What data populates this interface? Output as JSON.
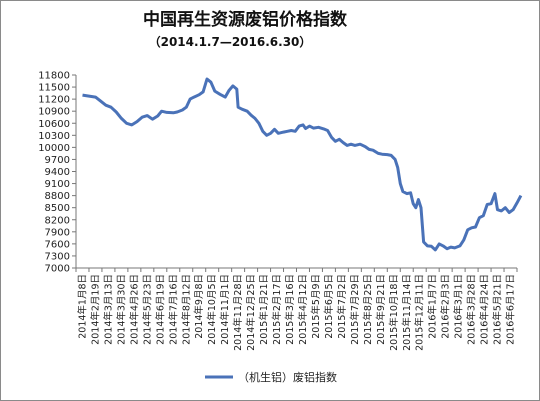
{
  "chart_data": {
    "type": "line",
    "title": "中国再生资源废铝价格指数",
    "subtitle": "（2014.1.7—2016.6.30）",
    "xlabel": "",
    "ylabel": "",
    "ylim": [
      7000,
      11800
    ],
    "yticks": [
      11800,
      11500,
      11200,
      10900,
      10600,
      10300,
      10000,
      9700,
      9400,
      9100,
      8800,
      8500,
      8200,
      7900,
      7600,
      7300,
      7000
    ],
    "x_tick_labels": [
      "2014年1月8日",
      "2014年2月19日",
      "2014年3月13日",
      "2014年3月30日",
      "2014年4月26日",
      "2014年5月23日",
      "2014年6月19日",
      "2014年7月16日",
      "2014年8月12日",
      "2014年9月8日",
      "2014年10月5日",
      "2014年11月1日",
      "2014年11月28日",
      "2014年12月25日",
      "2015年1月21日",
      "2015年2月17日",
      "2015年3月16日",
      "2015年4月12日",
      "2015年5月9日",
      "2015年6月5日",
      "2015年7月2日",
      "2015年7月29日",
      "2015年8月25日",
      "2015年9月21日",
      "2015年10月18日",
      "2015年11月14日",
      "2015年12月11日",
      "2016年1月7日",
      "2016年2月3日",
      "2016年3月1日",
      "2016年3月28日",
      "2016年4月24日",
      "2016年5月21日",
      "2016年6月17日"
    ],
    "grid": false,
    "legend_position": "bottom",
    "series": [
      {
        "name": "（机生铝）废铝指数",
        "color": "#4a72b8",
        "points": [
          [
            0,
            11300
          ],
          [
            1,
            11250
          ],
          [
            1.4,
            11150
          ],
          [
            1.8,
            11050
          ],
          [
            2.2,
            11000
          ],
          [
            2.6,
            10880
          ],
          [
            3,
            10720
          ],
          [
            3.4,
            10600
          ],
          [
            3.8,
            10560
          ],
          [
            4.2,
            10640
          ],
          [
            4.6,
            10750
          ],
          [
            5,
            10790
          ],
          [
            5.4,
            10700
          ],
          [
            5.8,
            10780
          ],
          [
            6.1,
            10900
          ],
          [
            6.5,
            10870
          ],
          [
            7,
            10860
          ],
          [
            7.3,
            10880
          ],
          [
            7.7,
            10930
          ],
          [
            8,
            11000
          ],
          [
            8.3,
            11200
          ],
          [
            8.6,
            11250
          ],
          [
            9,
            11310
          ],
          [
            9.3,
            11380
          ],
          [
            9.6,
            11700
          ],
          [
            9.9,
            11620
          ],
          [
            10.2,
            11400
          ],
          [
            10.6,
            11320
          ],
          [
            11,
            11250
          ],
          [
            11.3,
            11420
          ],
          [
            11.6,
            11530
          ],
          [
            11.9,
            11450
          ],
          [
            12,
            11000
          ],
          [
            12.3,
            10950
          ],
          [
            12.7,
            10900
          ],
          [
            13,
            10800
          ],
          [
            13.3,
            10720
          ],
          [
            13.6,
            10600
          ],
          [
            13.9,
            10400
          ],
          [
            14.2,
            10300
          ],
          [
            14.5,
            10350
          ],
          [
            14.8,
            10450
          ],
          [
            15.1,
            10350
          ],
          [
            15.5,
            10380
          ],
          [
            15.8,
            10400
          ],
          [
            16.1,
            10420
          ],
          [
            16.4,
            10400
          ],
          [
            16.7,
            10530
          ],
          [
            17,
            10560
          ],
          [
            17.2,
            10470
          ],
          [
            17.5,
            10530
          ],
          [
            17.8,
            10480
          ],
          [
            18.2,
            10500
          ],
          [
            18.6,
            10460
          ],
          [
            18.9,
            10420
          ],
          [
            19.2,
            10250
          ],
          [
            19.5,
            10150
          ],
          [
            19.8,
            10200
          ],
          [
            20.1,
            10120
          ],
          [
            20.4,
            10050
          ],
          [
            20.7,
            10080
          ],
          [
            21,
            10050
          ],
          [
            21.4,
            10080
          ],
          [
            21.8,
            10020
          ],
          [
            22.1,
            9950
          ],
          [
            22.4,
            9930
          ],
          [
            22.8,
            9850
          ],
          [
            23.1,
            9830
          ],
          [
            23.5,
            9820
          ],
          [
            23.8,
            9800
          ],
          [
            24.1,
            9700
          ],
          [
            24.3,
            9500
          ],
          [
            24.5,
            9100
          ],
          [
            24.7,
            8900
          ],
          [
            25,
            8850
          ],
          [
            25.3,
            8870
          ],
          [
            25.5,
            8600
          ],
          [
            25.7,
            8500
          ],
          [
            25.9,
            8700
          ],
          [
            26.1,
            8500
          ],
          [
            26.3,
            7650
          ],
          [
            26.6,
            7550
          ],
          [
            26.9,
            7540
          ],
          [
            27.2,
            7450
          ],
          [
            27.5,
            7600
          ],
          [
            27.8,
            7550
          ],
          [
            28.1,
            7480
          ],
          [
            28.4,
            7520
          ],
          [
            28.7,
            7500
          ],
          [
            29.1,
            7550
          ],
          [
            29.4,
            7700
          ],
          [
            29.7,
            7950
          ],
          [
            30,
            8000
          ],
          [
            30.3,
            8020
          ],
          [
            30.6,
            8250
          ],
          [
            30.9,
            8300
          ],
          [
            31.2,
            8580
          ],
          [
            31.5,
            8600
          ],
          [
            31.8,
            8850
          ],
          [
            32,
            8450
          ],
          [
            32.3,
            8420
          ],
          [
            32.6,
            8500
          ],
          [
            32.9,
            8380
          ],
          [
            33.2,
            8450
          ],
          [
            33.5,
            8620
          ],
          [
            33.8,
            8800
          ]
        ]
      }
    ]
  }
}
